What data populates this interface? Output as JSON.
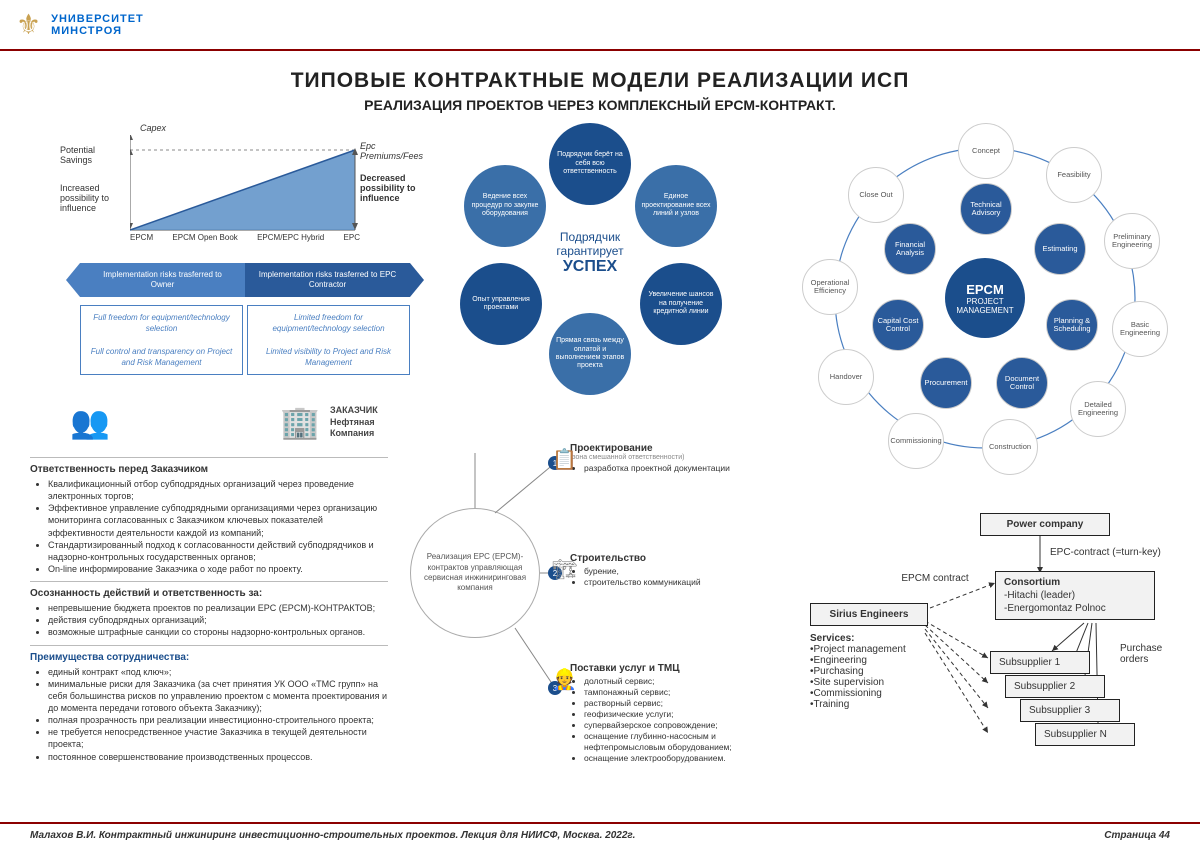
{
  "header": {
    "line1": "УНИВЕРСИТЕТ",
    "line2": "МИНСТРОЯ"
  },
  "title": "ТИПОВЫЕ  КОНТРАКТНЫЕ  МОДЕЛИ  РЕАЛИЗАЦИИ ИСП",
  "subtitle": "РЕАЛИЗАЦИЯ ПРОЕКТОВ ЧЕРЕЗ КОМПЛЕКСНЫЙ EPCM-КОНТРАКТ.",
  "colors": {
    "accent_blue": "#1b4e8c",
    "mid_blue": "#3a6fa8",
    "light_blue": "#4a7fc1",
    "dark_red": "#8b0000",
    "grey": "#888888"
  },
  "chart": {
    "capex": "Capex",
    "potential": "Potential Savings",
    "increased": "Increased possibility to influence",
    "premiums": "Epc Premiums/Fees",
    "decreased": "Decreased possibility to influence",
    "xlabels": [
      "EPCM",
      "EPCM Open Book",
      "EPCM/EPC Hybrid",
      "EPC"
    ],
    "arrow_left": "Implementation risks trasferred to Owner",
    "arrow_right": "Implementation risks trasferred to EPC Contractor",
    "box_left_1": "Full freedom for equipment/technology selection",
    "box_left_2": "Full control and transparency on Project and Risk Management",
    "box_right_1": "Limited freedom for equipment/technology selection",
    "box_right_2": "Limited visibility to Project and Risk Management"
  },
  "circ": {
    "center1": "Подрядчик",
    "center2": "гарантирует",
    "center3": "УСПЕХ",
    "segs": [
      "Подрядчик берёт на себя всю ответственность",
      "Единое проектирование всех линий и узлов",
      "Увеличение шансов на получение кредитной линии",
      "Прямая связь между оплатой и выполнением этапов проекта",
      "Опыт управления проектами",
      "Ведение всех процедур по закупке оборудования"
    ]
  },
  "wheel": {
    "center_big": "EPCM",
    "center_small": "PROJECT MANAGEMENT",
    "inner": [
      "Technical Advisory",
      "Estimating",
      "Planning & Scheduling",
      "Document Control",
      "Procurement",
      "Capital Cost Control",
      "Financial Analysis"
    ],
    "outer": [
      "Concept",
      "Feasibility",
      "Preliminary Engineering",
      "Basic Engineering",
      "Detailed Engineering",
      "Construction",
      "Commissioning",
      "Handover",
      "Operational Efficiency",
      "Close Out"
    ]
  },
  "bl": {
    "zakazchik": "ЗАКАЗЧИК\nНефтяная\nКомпания",
    "s1_h": "Ответственность перед Заказчиком",
    "s1": [
      "Квалификационный отбор субподрядных организаций через проведение электронных торгов;",
      "Эффективное управление субподрядными организациями через организацию мониторинга согласованных с Заказчиком ключевых показателей эффективности деятельности каждой из компаний;",
      "Стандартизированный подход к согласованности действий субподрядчиков и надзорно-контрольных государственных органов;",
      "On-line информирование Заказчика о ходе работ по проекту."
    ],
    "s2_h": "Осознанность действий и ответственность за:",
    "s2": [
      "непревышение бюджета проектов по реализации EPC (EPCM)-КОНТРАКТОВ;",
      "действия субподрядных организаций;",
      "возможные штрафные санкции со стороны надзорно-контрольных органов."
    ],
    "s3_h": "Преимущества сотрудничества:",
    "s3": [
      "единый контракт «под ключ»;",
      "минимальные риски для Заказчика (за счет принятия УК ООО «ТМС групп» на себя большинства рисков по управлению проектом с момента проектирования и до момента передачи готового объекта Заказчику);",
      "полная прозрачность при реализации инвестиционно-строительного проекта;",
      "не требуется непосредственное участие Заказчика в текущей деятельности проекта;",
      "постоянное совершенствование производственных процессов."
    ],
    "hub": "Реализация EPC (EPCM)-контрактов управляющая сервисная инжиниринговая компания",
    "p1_t": "Проектирование",
    "p1_s": "(зона смешанной ответственности)",
    "p1": [
      "разработка проектной документации"
    ],
    "p2_t": "Строительство",
    "p2": [
      "бурение,",
      "строительство коммуникаций"
    ],
    "p3_t": "Поставки услуг и ТМЦ",
    "p3": [
      "долотный сервис;",
      "тампонажный сервис;",
      "растворный сервис;",
      "геофизические услуги;",
      "супервайзерское сопровождение;",
      "оснащение глубинно-насосным и нефтепромысловым оборудованием;",
      "оснащение электрооборудованием."
    ]
  },
  "br": {
    "power": "Power company",
    "epc": "EPC-contract (=turn-key)",
    "epcm": "EPCM contract",
    "sirius": "Sirius Engineers",
    "services_h": "Services:",
    "services": [
      "•Project management",
      "•Engineering",
      "•Purchasing",
      "•Site supervision",
      "•Commissioning",
      "•Training"
    ],
    "consortium_h": "Consortium",
    "consortium": [
      "-Hitachi (leader)",
      "-Energomontaz Polnoc"
    ],
    "purchase": "Purchase orders",
    "subs": [
      "Subsupplier 1",
      "Subsupplier 2",
      "Subsupplier 3",
      "Subsupplier N"
    ]
  },
  "footer": {
    "left": "Малахов В.И. Контрактный инжиниринг инвестиционно-строительных проектов. Лекция для НИИСФ, Москва. 2022г.",
    "right": "Страница 44"
  }
}
